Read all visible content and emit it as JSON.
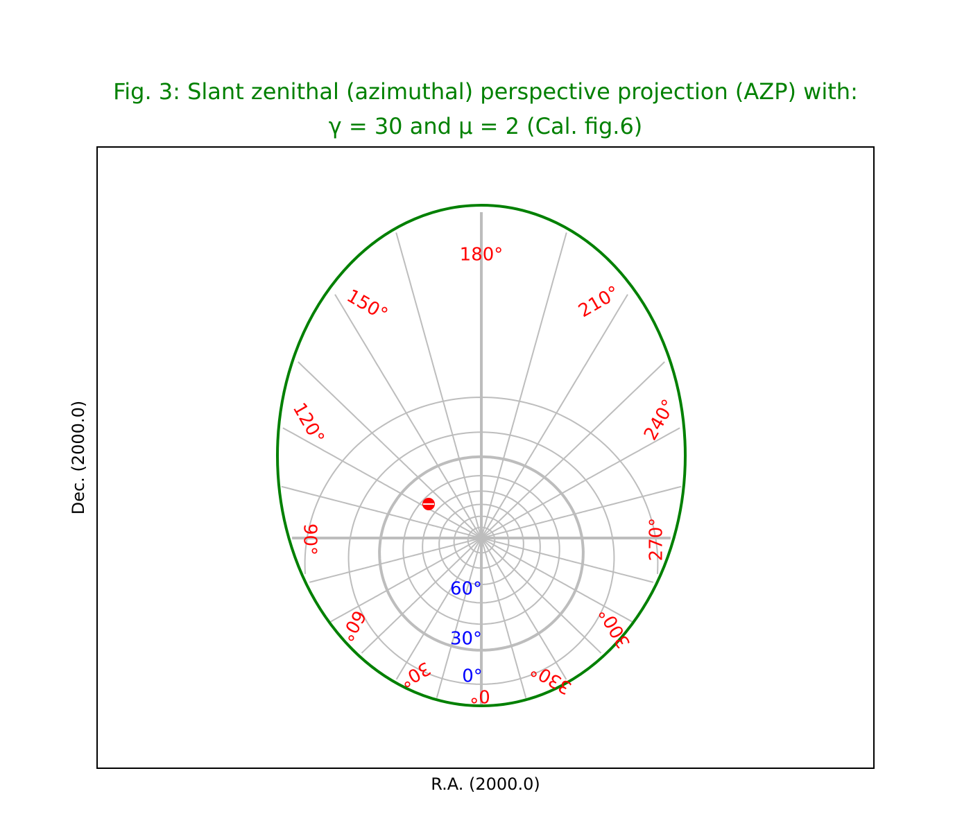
{
  "title": {
    "line1": "Fig. 3: Slant zenithal (azimuthal) perspective projection (AZP) with:",
    "line2": "γ = 30 and μ = 2 (Cal. fig.6)",
    "color": "#008000"
  },
  "axes": {
    "xlabel": "R.A. (2000.0)",
    "ylabel": "Dec. (2000.0)"
  },
  "graticule": {
    "ra_meridians_every_deg": 15,
    "dec_parallels_deg": [
      -30,
      -15,
      0,
      15,
      30,
      45,
      60,
      75
    ],
    "emphasized_parallel_deg": 0,
    "line_color": "#bdbdbd",
    "border_color": "#008000"
  },
  "ra_labels": {
    "color": "#ff0000",
    "items": [
      "0°",
      "30°",
      "60°",
      "90°",
      "120°",
      "150°",
      "180°",
      "210°",
      "240°",
      "270°",
      "300°",
      "330°"
    ]
  },
  "dec_labels": {
    "color": "#0000ff",
    "items": [
      "0°",
      "30°",
      "60°"
    ]
  },
  "marker": {
    "color": "#ff0000"
  }
}
